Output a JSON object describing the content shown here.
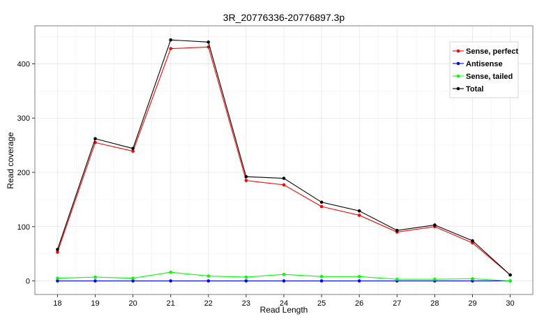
{
  "chart_data": {
    "type": "line",
    "title": "3R_20776336-20776897.3p",
    "xlabel": "Read Length",
    "ylabel": "Read coverage",
    "x": [
      18,
      19,
      20,
      21,
      22,
      23,
      24,
      25,
      26,
      27,
      28,
      29,
      30
    ],
    "xlim": [
      17.4,
      30.6
    ],
    "ylim": [
      -25,
      470
    ],
    "yticks": [
      0,
      100,
      200,
      300,
      400
    ],
    "grid": true,
    "legend_position": "top-right",
    "series": [
      {
        "name": "Sense, perfect",
        "color": "#ff0000",
        "values": [
          53,
          255,
          239,
          428,
          431,
          185,
          177,
          137,
          121,
          90,
          100,
          70,
          11
        ]
      },
      {
        "name": "Antisense",
        "color": "#0000ff",
        "values": [
          0,
          0,
          0,
          0,
          0,
          0,
          0,
          0,
          0,
          0,
          0,
          0,
          0
        ]
      },
      {
        "name": "Sense, tailed",
        "color": "#00ff00",
        "values": [
          5,
          7,
          5,
          16,
          9,
          7,
          12,
          8,
          8,
          3,
          3,
          4,
          0
        ]
      },
      {
        "name": "Total",
        "color": "#000000",
        "values": [
          58,
          262,
          244,
          444,
          440,
          192,
          189,
          145,
          129,
          93,
          103,
          74,
          11
        ]
      }
    ]
  }
}
